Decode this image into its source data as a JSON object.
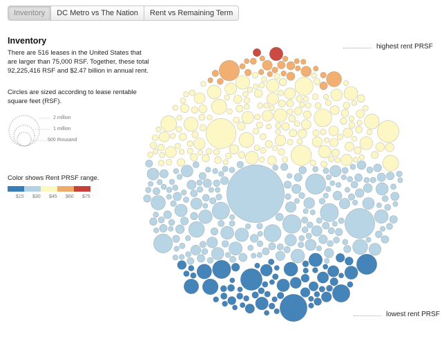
{
  "tabs": [
    {
      "label": "Inventory",
      "active": true
    },
    {
      "label": "DC Metro vs The Nation",
      "active": false
    },
    {
      "label": "Rent vs Remaining Term",
      "active": false
    }
  ],
  "sidebar": {
    "title": "Inventory",
    "description": "There are 516 leases in the United States that are larger than 75,000 RSF. Together, these total 92,225,416 RSF and $2.47 billion in annual rent.",
    "size_note": "Circles are sized according to lease rentable square feet (RSF).",
    "size_legend": [
      "2 million",
      "1 million",
      "500 thousand"
    ],
    "color_note": "Color shows Rent PRSF range.",
    "color_legend": [
      "$15",
      "$30",
      "$45",
      "$60",
      "$75"
    ]
  },
  "annotations": {
    "high": "highest rent PRSF",
    "low": "lowest rent PRSF"
  },
  "colors": {
    "rent_15_30": "#3b7db5",
    "rent_30_45": "#b3d3e3",
    "rent_45_60": "#fdf7c2",
    "rent_60_75": "#f0ab6a",
    "rent_75_plus": "#c8403a"
  },
  "chart_data": {
    "type": "packed-bubble",
    "leases": 516,
    "total_rsf": 92225416,
    "annual_rent_billion": 2.47,
    "bands": [
      {
        "range": "$15-$30",
        "color": "#3b7db5"
      },
      {
        "range": "$30-$45",
        "color": "#b3d3e3"
      },
      {
        "range": "$45-$60",
        "color": "#fdf7c2"
      },
      {
        "range": "$60-$75",
        "color": "#f0ab6a"
      },
      {
        "range": "$75+",
        "color": "#c8403a"
      }
    ]
  }
}
